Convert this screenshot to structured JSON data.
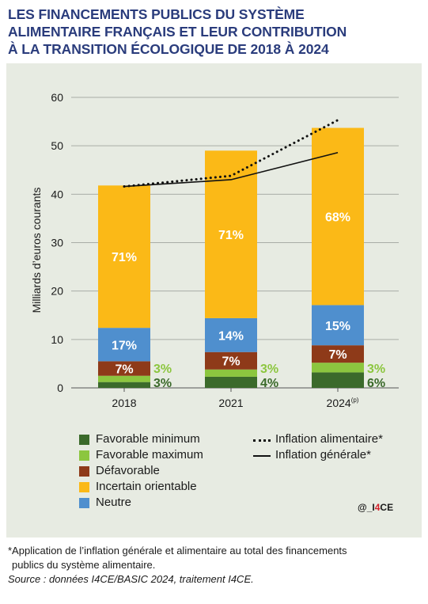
{
  "title_lines": [
    "LES FINANCEMENTS PUBLICS DU SYSTÈME",
    "ALIMENTAIRE FRANÇAIS ET LEUR CONTRIBUTION",
    "À LA TRANSITION ÉCOLOGIQUE DE 2018 À 2024"
  ],
  "colors": {
    "title": "#2a3c7c",
    "panel_bg": "#e7ebe2",
    "favorable_minimum": "#3b6a2b",
    "favorable_maximum": "#8cc63f",
    "defavorable": "#8e3a19",
    "incertain_orientable": "#fbb917",
    "neutre": "#4f8fce",
    "watermark_accent": "#d4202a"
  },
  "chart_data": {
    "type": "bar",
    "stacked": true,
    "categories": [
      "2018",
      "2021",
      "2024"
    ],
    "category_superscripts": [
      "",
      "",
      "(p)"
    ],
    "ylabel": "Milliards d’euros courants",
    "ylim": [
      0,
      60
    ],
    "yticks": [
      0,
      10,
      20,
      30,
      40,
      50,
      60
    ],
    "grid": true,
    "series": [
      {
        "name": "Favorable minimum",
        "color": "#3b6a2b",
        "values": [
          1.2,
          2.3,
          3.2
        ],
        "labels": [
          "3%",
          "4%",
          "6%"
        ],
        "label_outside": true
      },
      {
        "name": "Favorable maximum",
        "color": "#8cc63f",
        "values": [
          1.3,
          1.5,
          2.0
        ],
        "labels": [
          "3%",
          "3%",
          "3%"
        ],
        "label_outside": true
      },
      {
        "name": "Défavorable",
        "color": "#8e3a19",
        "values": [
          3.0,
          3.6,
          3.6
        ],
        "labels": [
          "7%",
          "7%",
          "7%"
        ]
      },
      {
        "name": "Incertain orientable",
        "color": "#fbb917",
        "values": [
          29.4,
          34.6,
          36.6
        ],
        "labels": [
          "71%",
          "71%",
          "68%"
        ]
      },
      {
        "name": "Neutre",
        "color": "#4f8fce",
        "values": [
          6.9,
          7.0,
          8.3
        ],
        "labels": [
          "17%",
          "14%",
          "15%"
        ]
      }
    ],
    "series_order_bottom_to_top": [
      "Favorable minimum",
      "Favorable maximum",
      "Défavorable",
      "Neutre",
      "Incertain orientable"
    ],
    "lines": [
      {
        "name": "Inflation alimentaire*",
        "style": "dotted",
        "x": [
          2018,
          2021,
          2024
        ],
        "values": [
          41.6,
          43.8,
          55.3
        ]
      },
      {
        "name": "Inflation générale*",
        "style": "solid",
        "x": [
          2018,
          2021,
          2024
        ],
        "values": [
          41.6,
          43.0,
          48.6
        ]
      }
    ],
    "legend_position": "bottom"
  },
  "legend": {
    "left": [
      "Favorable minimum",
      "Favorable maximum",
      "Défavorable",
      "Incertain orientable",
      "Neutre"
    ],
    "right": [
      "Inflation alimentaire*",
      "Inflation générale*"
    ]
  },
  "watermark": {
    "prefix": "@_I",
    "accent": "4",
    "suffix": "CE"
  },
  "footnote": {
    "line1": "*Application de l’inflation générale et alimentaire au total des financements",
    "line2": "publics du système alimentaire.",
    "source": "Source : données I4CE/BASIC 2024, traitement I4CE."
  }
}
